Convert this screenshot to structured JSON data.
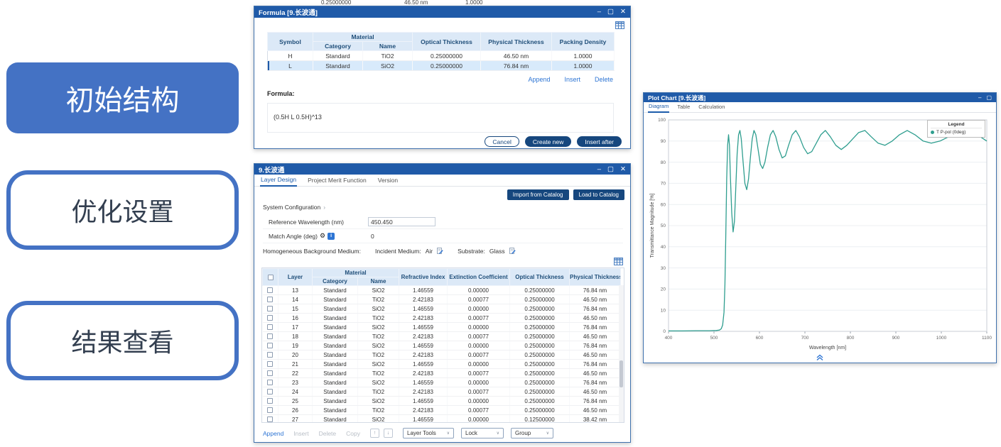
{
  "window_controls": {
    "minimize": "–",
    "maximize": "▢",
    "close": "✕"
  },
  "icons": {
    "dropdown": "∨",
    "up": "↑",
    "down": "↓",
    "gear": "⚙",
    "info": "i",
    "expander": "›"
  },
  "left_menu": {
    "items": [
      {
        "label": "初始结构"
      },
      {
        "label": "优化设置"
      },
      {
        "label": "结果查看"
      }
    ]
  },
  "background_window": {
    "partial_values": [
      "0.25000000",
      "46.50 nm",
      "1.0000"
    ]
  },
  "formula_dialog": {
    "title": "Formula [9.长波通]",
    "table": {
      "headers": {
        "symbol": "Symbol",
        "material": "Material",
        "category": "Category",
        "name": "Name",
        "optical_thickness": "Optical Thickness",
        "physical_thickness": "Physical Thickness",
        "packing_density": "Packing Density"
      },
      "rows": [
        {
          "symbol": "H",
          "category": "Standard",
          "name": "TiO2",
          "optical": "0.25000000",
          "physical": "46.50 nm",
          "packing": "1.0000",
          "selected": false
        },
        {
          "symbol": "L",
          "category": "Standard",
          "name": "SiO2",
          "optical": "0.25000000",
          "physical": "76.84 nm",
          "packing": "1.0000",
          "selected": true
        }
      ]
    },
    "links": [
      "Append",
      "Insert",
      "Delete"
    ],
    "formula_label": "Formula:",
    "formula_value": "(0.5H L 0.5H)^13",
    "buttons": {
      "cancel": "Cancel",
      "create_new": "Create new",
      "insert_after": "Insert after"
    }
  },
  "design_window": {
    "title": "9.长波通",
    "tabs": [
      "Layer Design",
      "Project Merit Function",
      "Version"
    ],
    "active_tab": "Layer Design",
    "buttons": {
      "import_catalog": "Import from Catalog",
      "load_catalog": "Load to Catalog"
    },
    "system_configuration": "System Configuration",
    "fields": {
      "reference_wavelength_label": "Reference Wavelength (nm)",
      "reference_wavelength_value": "450.450",
      "match_angle_label": "Match Angle (deg)",
      "match_angle_value": "0"
    },
    "medium": {
      "label": "Homogeneous Background Medium:",
      "incident_label": "Incident Medium:",
      "incident_value": "Air",
      "substrate_label": "Substrate:",
      "substrate_value": "Glass"
    },
    "table": {
      "headers": {
        "layer": "Layer",
        "material": "Material",
        "category": "Category",
        "name": "Name",
        "refractive_index": "Refractive Index",
        "extinction_coefficient": "Extinction Coefficient",
        "optical_thickness": "Optical Thickness",
        "physical_thickness": "Physical Thickness"
      },
      "rows": [
        {
          "layer": "13",
          "category": "Standard",
          "name": "SiO2",
          "n": "1.46559",
          "k": "0.00000",
          "ot": "0.25000000",
          "pt": "76.84 nm"
        },
        {
          "layer": "14",
          "category": "Standard",
          "name": "TiO2",
          "n": "2.42183",
          "k": "0.00077",
          "ot": "0.25000000",
          "pt": "46.50 nm"
        },
        {
          "layer": "15",
          "category": "Standard",
          "name": "SiO2",
          "n": "1.46559",
          "k": "0.00000",
          "ot": "0.25000000",
          "pt": "76.84 nm"
        },
        {
          "layer": "16",
          "category": "Standard",
          "name": "TiO2",
          "n": "2.42183",
          "k": "0.00077",
          "ot": "0.25000000",
          "pt": "46.50 nm"
        },
        {
          "layer": "17",
          "category": "Standard",
          "name": "SiO2",
          "n": "1.46559",
          "k": "0.00000",
          "ot": "0.25000000",
          "pt": "76.84 nm"
        },
        {
          "layer": "18",
          "category": "Standard",
          "name": "TiO2",
          "n": "2.42183",
          "k": "0.00077",
          "ot": "0.25000000",
          "pt": "46.50 nm"
        },
        {
          "layer": "19",
          "category": "Standard",
          "name": "SiO2",
          "n": "1.46559",
          "k": "0.00000",
          "ot": "0.25000000",
          "pt": "76.84 nm"
        },
        {
          "layer": "20",
          "category": "Standard",
          "name": "TiO2",
          "n": "2.42183",
          "k": "0.00077",
          "ot": "0.25000000",
          "pt": "46.50 nm"
        },
        {
          "layer": "21",
          "category": "Standard",
          "name": "SiO2",
          "n": "1.46559",
          "k": "0.00000",
          "ot": "0.25000000",
          "pt": "76.84 nm"
        },
        {
          "layer": "22",
          "category": "Standard",
          "name": "TiO2",
          "n": "2.42183",
          "k": "0.00077",
          "ot": "0.25000000",
          "pt": "46.50 nm"
        },
        {
          "layer": "23",
          "category": "Standard",
          "name": "SiO2",
          "n": "1.46559",
          "k": "0.00000",
          "ot": "0.25000000",
          "pt": "76.84 nm"
        },
        {
          "layer": "24",
          "category": "Standard",
          "name": "TiO2",
          "n": "2.42183",
          "k": "0.00077",
          "ot": "0.25000000",
          "pt": "46.50 nm"
        },
        {
          "layer": "25",
          "category": "Standard",
          "name": "SiO2",
          "n": "1.46559",
          "k": "0.00000",
          "ot": "0.25000000",
          "pt": "76.84 nm"
        },
        {
          "layer": "26",
          "category": "Standard",
          "name": "TiO2",
          "n": "2.42183",
          "k": "0.00077",
          "ot": "0.25000000",
          "pt": "46.50 nm"
        },
        {
          "layer": "27",
          "category": "Standard",
          "name": "SiO2",
          "n": "1.46559",
          "k": "0.00000",
          "ot": "0.12500000",
          "pt": "38.42 nm"
        }
      ]
    },
    "toolbar": {
      "append": "Append",
      "insert": "Insert",
      "delete": "Delete",
      "copy": "Copy",
      "dropdowns": [
        "Layer Tools",
        "Lock",
        "Group"
      ]
    }
  },
  "plot_window": {
    "title": "Plot Chart [9.长波通]",
    "tabs": [
      "Diagram",
      "Table",
      "Calculation"
    ],
    "active_tab": "Diagram"
  },
  "chart_data": {
    "type": "line",
    "title": "",
    "xlabel": "Wavelength [nm]",
    "ylabel": "Transmittance Magnitude [%]",
    "xlim": [
      400,
      1100
    ],
    "ylim": [
      0,
      100
    ],
    "x_ticks": [
      400,
      500,
      600,
      700,
      800,
      900,
      1000,
      1100
    ],
    "y_ticks": [
      0,
      10,
      20,
      30,
      40,
      50,
      60,
      70,
      80,
      90,
      100
    ],
    "grid": true,
    "legend": {
      "title": "Legend",
      "position": "top-right"
    },
    "series": [
      {
        "name": "T P-pol (0deg)",
        "color": "#2f9e8f",
        "x": [
          400,
          430,
          460,
          490,
          505,
          512,
          516,
          519,
          522,
          524,
          526,
          528,
          530,
          532,
          534,
          536,
          539,
          542,
          545,
          548,
          551,
          554,
          557,
          560,
          564,
          568,
          572,
          576,
          580,
          584,
          588,
          592,
          597,
          602,
          607,
          612,
          618,
          624,
          630,
          636,
          643,
          650,
          657,
          664,
          672,
          680,
          688,
          697,
          706,
          715,
          725,
          735,
          745,
          756,
          768,
          780,
          792,
          805,
          818,
          832,
          846,
          861,
          876,
          892,
          908,
          925,
          942,
          960,
          978,
          997,
          1016,
          1036,
          1057,
          1079,
          1100
        ],
        "y": [
          0.2,
          0.2,
          0.3,
          0.3,
          0.4,
          0.6,
          1.2,
          3,
          9,
          22,
          45,
          72,
          88,
          93,
          88,
          74,
          56,
          47,
          52,
          68,
          84,
          93,
          95,
          91,
          80,
          70,
          67,
          72,
          82,
          91,
          95,
          93,
          86,
          79,
          77,
          80,
          87,
          93,
          95,
          92,
          86,
          82,
          83,
          88,
          93,
          95,
          92,
          87,
          84,
          85,
          89,
          93,
          95,
          92,
          88,
          86,
          88,
          91,
          94,
          95,
          92,
          89,
          88,
          90,
          93,
          95,
          93,
          90,
          89,
          90,
          92,
          94,
          95,
          93,
          90
        ]
      }
    ]
  }
}
